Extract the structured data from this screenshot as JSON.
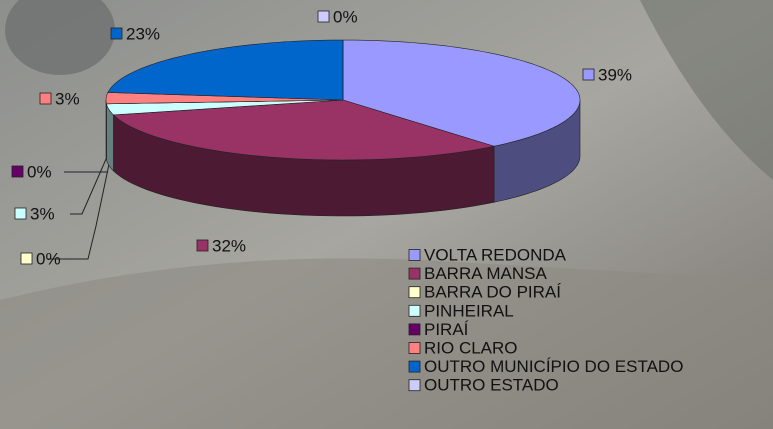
{
  "chart_data": {
    "type": "pie3d",
    "categories": [
      "VOLTA REDONDA",
      "BARRA MANSA",
      "BARRA DO PIRAÍ",
      "PINHEIRAL",
      "PIRAÍ",
      "RIO CLARO",
      "OUTRO MUNICÍPIO DO ESTADO",
      "OUTRO ESTADO"
    ],
    "values": [
      39,
      32,
      0,
      3,
      0,
      3,
      23,
      0
    ],
    "value_labels": [
      "39%",
      "32%",
      "0%",
      "3%",
      "0%",
      "3%",
      "23%",
      "0%"
    ],
    "colors": [
      "#9999ff",
      "#993366",
      "#ffffcc",
      "#ccffff",
      "#660066",
      "#ff8080",
      "#0066cc",
      "#ccccff"
    ],
    "legend": "bottom-right"
  }
}
